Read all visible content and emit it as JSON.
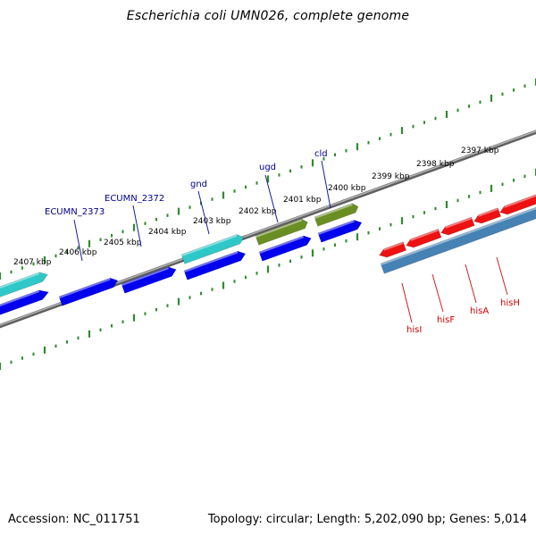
{
  "title": "Escherichia coli UMN026, complete genome",
  "footer": {
    "accession": "Accession: NC_011751",
    "stats": "Topology: circular; Length: 5,202,090 bp; Genes: 5,014"
  },
  "colors": {
    "backbone": "#808080",
    "tick": "#2e8b2e",
    "cds_forward": "#0000ee",
    "cds_cyan": "#2ec8c8",
    "cds_olive": "#6b8e23",
    "cds_red": "#ee1111",
    "cds_steel": "#4682b4",
    "label_blue": "#00008b",
    "label_red": "#cc0000"
  },
  "ruler": {
    "kbp_labels": [
      "2397 kbp",
      "2398 kbp",
      "2399 kbp",
      "2400 kbp",
      "2401 kbp",
      "2402 kbp",
      "2403 kbp",
      "2404 kbp",
      "2405 kbp",
      "2406 kbp",
      "2407 kbp"
    ]
  },
  "genes": {
    "upper": [
      {
        "name": "cld",
        "color": "blue"
      },
      {
        "name": "ugd",
        "color": "blue"
      },
      {
        "name": "gnd",
        "color": "blue"
      },
      {
        "name": "ECUMN_2372",
        "color": "blue"
      },
      {
        "name": "ECUMN_2373",
        "color": "blue"
      }
    ],
    "lower": [
      {
        "name": "hisI",
        "color": "red"
      },
      {
        "name": "hisF",
        "color": "red"
      },
      {
        "name": "hisA",
        "color": "red"
      },
      {
        "name": "hisH",
        "color": "red"
      }
    ]
  }
}
